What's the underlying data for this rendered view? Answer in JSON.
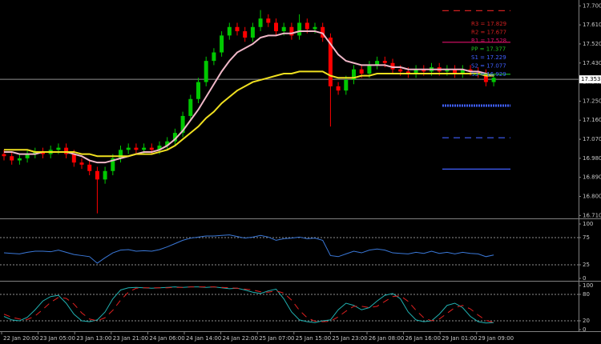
{
  "chart_data": [
    {
      "type": "candlestick",
      "up_color": "#00c800",
      "down_color": "#ff0000",
      "open": [
        17.0,
        16.99,
        16.97,
        16.98,
        17.0,
        17.01,
        17.0,
        17.02,
        17.03,
        17.0,
        16.96,
        16.95,
        16.92,
        16.88,
        16.92,
        16.98,
        17.02,
        17.03,
        17.02,
        17.03,
        17.02,
        17.04,
        17.06,
        17.1,
        17.18,
        17.26,
        17.34,
        17.44,
        17.48,
        17.56,
        17.6,
        17.58,
        17.55,
        17.6,
        17.64,
        17.62,
        17.58,
        17.6,
        17.56,
        17.62,
        17.59,
        17.6,
        17.55,
        17.32,
        17.3,
        17.35,
        17.4,
        17.38,
        17.42,
        17.44,
        17.43,
        17.4,
        17.39,
        17.38,
        17.4,
        17.39,
        17.41,
        17.39,
        17.4,
        17.38,
        17.4,
        17.39,
        17.38,
        17.34
      ],
      "high": [
        17.02,
        17.01,
        17.0,
        17.02,
        17.03,
        17.03,
        17.04,
        17.05,
        17.05,
        17.02,
        16.98,
        16.97,
        16.94,
        16.94,
        17.0,
        17.04,
        17.05,
        17.05,
        17.05,
        17.05,
        17.06,
        17.08,
        17.12,
        17.2,
        17.28,
        17.36,
        17.46,
        17.5,
        17.58,
        17.62,
        17.62,
        17.6,
        17.62,
        17.68,
        17.66,
        17.64,
        17.62,
        17.62,
        17.66,
        17.64,
        17.62,
        17.62,
        17.57,
        17.34,
        17.37,
        17.42,
        17.42,
        17.44,
        17.46,
        17.46,
        17.45,
        17.42,
        17.41,
        17.42,
        17.42,
        17.43,
        17.43,
        17.42,
        17.42,
        17.42,
        17.42,
        17.41,
        17.4,
        17.38
      ],
      "low": [
        16.97,
        16.95,
        16.95,
        16.96,
        16.98,
        16.98,
        16.98,
        17.0,
        16.98,
        16.94,
        16.93,
        16.9,
        16.72,
        16.86,
        16.9,
        16.96,
        17.0,
        17.0,
        17.0,
        17.0,
        17.0,
        17.02,
        17.04,
        17.08,
        17.16,
        17.24,
        17.32,
        17.42,
        17.46,
        17.54,
        17.56,
        17.53,
        17.53,
        17.58,
        17.6,
        17.56,
        17.56,
        17.54,
        17.54,
        17.57,
        17.57,
        17.53,
        17.13,
        17.28,
        17.28,
        17.33,
        17.36,
        17.36,
        17.4,
        17.41,
        17.38,
        17.37,
        17.36,
        17.36,
        17.37,
        17.37,
        17.37,
        17.37,
        17.36,
        17.36,
        17.37,
        17.36,
        17.32,
        17.32
      ],
      "close": [
        16.99,
        16.97,
        16.98,
        17.0,
        17.01,
        17.0,
        17.02,
        17.03,
        17.0,
        16.96,
        16.95,
        16.92,
        16.88,
        16.92,
        16.98,
        17.02,
        17.03,
        17.02,
        17.03,
        17.02,
        17.04,
        17.06,
        17.1,
        17.18,
        17.26,
        17.34,
        17.44,
        17.48,
        17.56,
        17.6,
        17.58,
        17.55,
        17.6,
        17.64,
        17.62,
        17.58,
        17.6,
        17.56,
        17.62,
        17.59,
        17.6,
        17.55,
        17.32,
        17.3,
        17.35,
        17.4,
        17.38,
        17.42,
        17.44,
        17.43,
        17.4,
        17.39,
        17.38,
        17.4,
        17.39,
        17.41,
        17.39,
        17.4,
        17.38,
        17.4,
        17.39,
        17.38,
        17.34,
        17.36
      ],
      "series": [
        {
          "color": "#f0b8c8",
          "values": [
            17.01,
            17.01,
            17.0,
            17.0,
            17.0,
            17.01,
            17.01,
            17.01,
            17.01,
            17.0,
            16.99,
            16.97,
            16.96,
            16.96,
            16.97,
            16.98,
            16.99,
            17.0,
            17.01,
            17.01,
            17.02,
            17.04,
            17.07,
            17.11,
            17.16,
            17.21,
            17.27,
            17.33,
            17.39,
            17.44,
            17.48,
            17.5,
            17.52,
            17.55,
            17.56,
            17.56,
            17.57,
            17.57,
            17.58,
            17.58,
            17.58,
            17.57,
            17.52,
            17.47,
            17.44,
            17.43,
            17.42,
            17.42,
            17.42,
            17.42,
            17.41,
            17.41,
            17.4,
            17.4,
            17.4,
            17.4,
            17.4,
            17.4,
            17.4,
            17.4,
            17.39,
            17.39,
            17.38,
            17.37
          ]
        },
        {
          "color": "#f0e020",
          "values": [
            17.02,
            17.02,
            17.02,
            17.02,
            17.01,
            17.01,
            17.01,
            17.01,
            17.01,
            17.01,
            17.0,
            17.0,
            16.99,
            16.99,
            16.99,
            16.99,
            16.99,
            17.0,
            17.0,
            17.0,
            17.01,
            17.02,
            17.04,
            17.07,
            17.1,
            17.13,
            17.17,
            17.2,
            17.24,
            17.27,
            17.3,
            17.32,
            17.34,
            17.35,
            17.36,
            17.37,
            17.38,
            17.38,
            17.39,
            17.39,
            17.39,
            17.39,
            17.37,
            17.36,
            17.36,
            17.36,
            17.37,
            17.37,
            17.38,
            17.38,
            17.38,
            17.38,
            17.38,
            17.38,
            17.38,
            17.38,
            17.38,
            17.38,
            17.38,
            17.38,
            17.38,
            17.38,
            17.37,
            17.37
          ]
        }
      ],
      "ylim": [
        16.7,
        17.72
      ],
      "yticks": [
        {
          "value": 17.7,
          "label": "17.700"
        },
        {
          "value": 17.61,
          "label": "17.610"
        },
        {
          "value": 17.52,
          "label": "17.520"
        },
        {
          "value": 17.43,
          "label": "17.430"
        },
        {
          "value": 17.34,
          "label": "17.340"
        },
        {
          "value": 17.25,
          "label": "17.250"
        },
        {
          "value": 17.16,
          "label": "17.160"
        },
        {
          "value": 17.07,
          "label": "17.070"
        },
        {
          "value": 16.98,
          "label": "16.980"
        },
        {
          "value": 16.89,
          "label": "16.890"
        },
        {
          "value": 16.8,
          "label": "16.800"
        },
        {
          "value": 16.71,
          "label": "16.710"
        }
      ],
      "current_price": {
        "value": 17.353,
        "label": "17.353"
      },
      "pivots": [
        {
          "value": 17.829,
          "label": "R3 = 17.829",
          "color": "#d02020",
          "style": "dashed"
        },
        {
          "value": 17.677,
          "label": "R2 = 17.677",
          "color": "#d02020",
          "style": "dashed"
        },
        {
          "value": 17.528,
          "label": "R1 = 17.528",
          "color": "#e0106a",
          "style": "solid"
        },
        {
          "value": 17.377,
          "label": "PP = 17.377",
          "color": "#20c020",
          "style": "solid"
        },
        {
          "value": 17.229,
          "label": "S1 = 17.229",
          "color": "#4060ff",
          "style": "dotted"
        },
        {
          "value": 17.077,
          "label": "S2 = 17.077",
          "color": "#4060ff",
          "style": "dashed"
        },
        {
          "value": 16.929,
          "label": "S3 = 16.929",
          "color": "#4060ff",
          "style": "solid"
        }
      ],
      "x_labels": [
        "22 Jan 20:00",
        "23 Jan 05:00",
        "23 Jan 13:00",
        "23 Jan 21:00",
        "24 Jan 06:00",
        "24 Jan 14:00",
        "24 Jan 22:00",
        "25 Jan 07:00",
        "25 Jan 15:00",
        "25 Jan 23:00",
        "26 Jan 08:00",
        "26 Jan 16:00",
        "29 Jan 01:00",
        "29 Jan 09:00"
      ]
    },
    {
      "type": "line",
      "series": [
        {
          "color": "#3a78d8",
          "values": [
            47,
            46,
            45,
            48,
            50,
            50,
            49,
            52,
            48,
            44,
            42,
            40,
            28,
            38,
            47,
            52,
            53,
            50,
            51,
            50,
            53,
            58,
            64,
            70,
            74,
            76,
            78,
            78,
            79,
            80,
            77,
            74,
            76,
            79,
            76,
            70,
            73,
            74,
            76,
            73,
            74,
            70,
            42,
            40,
            45,
            50,
            47,
            52,
            54,
            52,
            47,
            46,
            45,
            48,
            46,
            50,
            46,
            48,
            45,
            48,
            46,
            45,
            40,
            43
          ]
        }
      ],
      "ylim": [
        0,
        100
      ],
      "yticks": [
        100,
        75,
        25,
        0
      ],
      "levels": [
        75,
        25
      ]
    },
    {
      "type": "line",
      "series": [
        {
          "color": "#20b0b0",
          "style": "solid",
          "values": [
            30,
            22,
            20,
            28,
            45,
            65,
            75,
            78,
            60,
            35,
            20,
            18,
            22,
            40,
            70,
            90,
            95,
            96,
            95,
            94,
            95,
            96,
            97,
            96,
            97,
            97,
            96,
            97,
            95,
            93,
            94,
            90,
            85,
            82,
            88,
            92,
            70,
            40,
            22,
            18,
            16,
            20,
            22,
            45,
            60,
            55,
            45,
            50,
            65,
            78,
            82,
            70,
            40,
            22,
            18,
            20,
            35,
            55,
            60,
            50,
            30,
            18,
            15,
            16
          ]
        },
        {
          "color": "#e02020",
          "style": "dashed",
          "values": [
            35,
            28,
            24,
            23,
            31,
            46,
            62,
            73,
            71,
            58,
            38,
            24,
            20,
            27,
            44,
            67,
            85,
            94,
            95,
            95,
            95,
            95,
            96,
            96,
            97,
            97,
            97,
            97,
            96,
            95,
            94,
            92,
            90,
            86,
            85,
            88,
            83,
            67,
            44,
            27,
            19,
            18,
            19,
            29,
            42,
            53,
            53,
            50,
            53,
            64,
            75,
            77,
            64,
            44,
            27,
            20,
            24,
            37,
            50,
            55,
            47,
            33,
            21,
            16
          ]
        }
      ],
      "ylim": [
        0,
        100
      ],
      "yticks": [
        100,
        80,
        20,
        0
      ],
      "levels": [
        80,
        20
      ]
    }
  ]
}
